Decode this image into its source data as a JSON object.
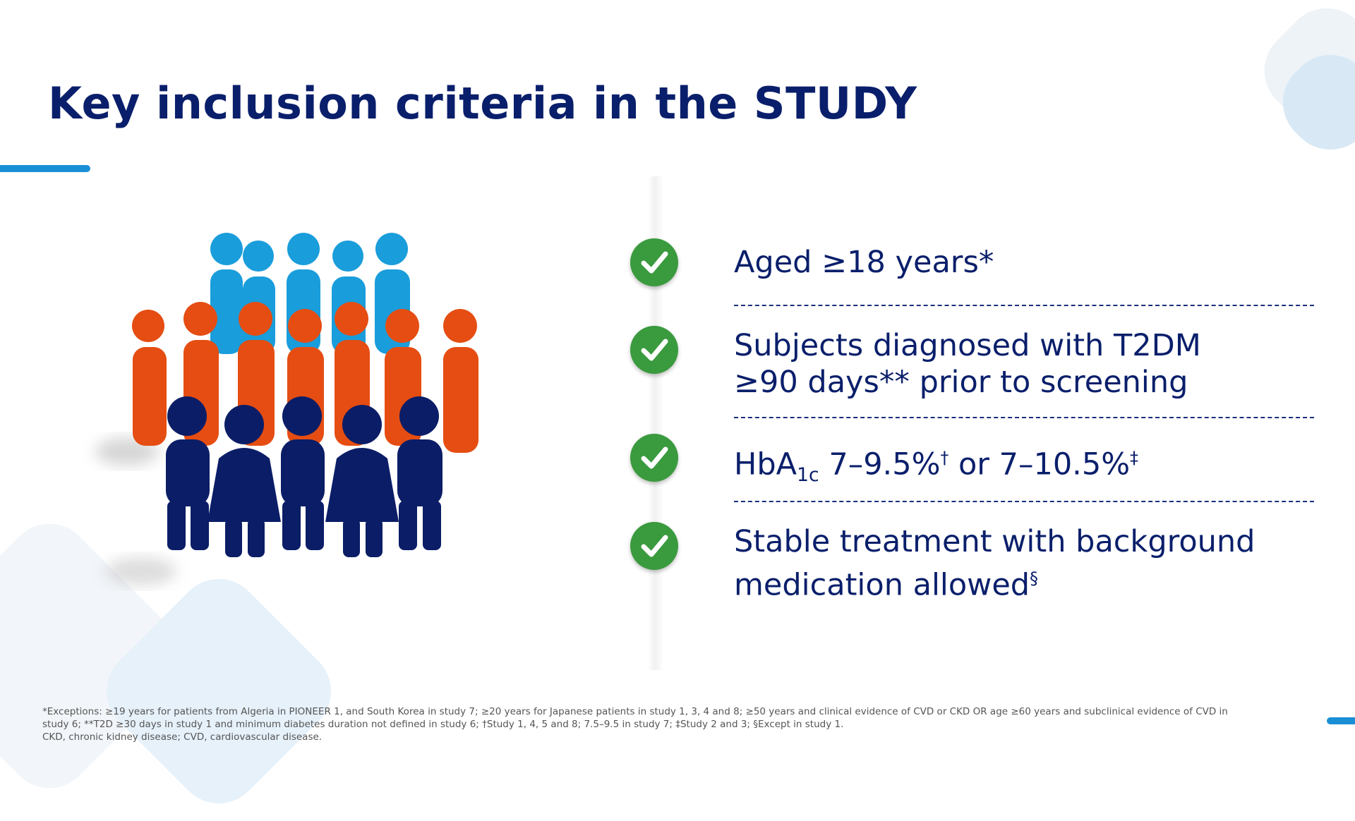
{
  "title": "Key inclusion criteria in the STUDY",
  "colors": {
    "title": "#0a1f6b",
    "accent_bar": "#1a8fd6",
    "check": "#3a9a3e",
    "people_light_blue": "#1a9ddb",
    "people_orange": "#e54d12",
    "people_navy": "#0b1d66"
  },
  "icons": {
    "check": "check-circle-icon",
    "crowd": "people-group-icon"
  },
  "criteria": [
    {
      "line1": "Aged ≥18 years*",
      "line2": ""
    },
    {
      "line1": "Subjects diagnosed with T2DM",
      "line2": "≥90 days** prior to screening"
    },
    {
      "pre": "HbA",
      "sub": "1c",
      "mid": " 7–9.5%",
      "sup1": "†",
      "mid2": " or 7–10.5%",
      "sup2": "‡"
    },
    {
      "line1": "Stable treatment with background",
      "line2": "medication allowed",
      "sup": "§"
    }
  ],
  "footnote": {
    "line1": "*Exceptions: ≥19 years for patients from Algeria in PIONEER 1, and South Korea in study 7; ≥20 years for Japanese patients in study 1, 3, 4 and 8; ≥50 years and clinical evidence of CVD or CKD OR age ≥60 years and subclinical evidence of CVD in",
    "line2": "study 6; **T2D ≥30 days in study 1 and minimum diabetes duration not defined in study 6; †Study 1, 4, 5 and 8; 7.5–9.5 in study 7; ‡Study 2 and 3; §Except in study 1.",
    "line3": "CKD, chronic kidney disease; CVD, cardiovascular disease."
  }
}
